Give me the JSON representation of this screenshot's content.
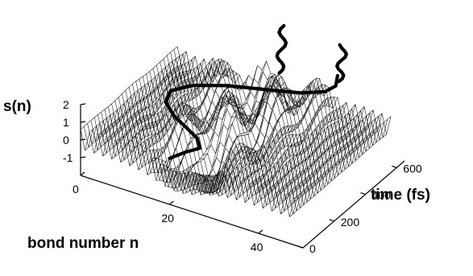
{
  "chart_data": {
    "type": "surface3d",
    "title": "",
    "axes": {
      "x": {
        "label": "bond number n",
        "range": [
          0,
          50
        ],
        "ticks": [
          "0",
          "20",
          "40"
        ],
        "tick_values": [
          0,
          20,
          40
        ]
      },
      "y": {
        "label": "time (fs)",
        "range": [
          0,
          650
        ],
        "ticks": [
          "0",
          "200",
          "400",
          "600"
        ],
        "tick_values": [
          0,
          200,
          400,
          600
        ]
      },
      "z": {
        "label": "s(n)",
        "range": [
          -2,
          2
        ],
        "ticks": [
          "2",
          "1",
          "0",
          "-1"
        ],
        "tick_values": [
          2,
          1,
          0,
          -1
        ]
      }
    },
    "surface": {
      "description_values": "bond-order staggering field s(n,t), flat (~0.7 / -0.7 alternation) near edges, strongly distorted near n ~ 15-30 and t ~ 100-600",
      "grid_n": 48,
      "grid_t": 28
    },
    "trajectory": {
      "label": "",
      "points": [
        [
          20,
          0,
          0.6
        ],
        [
          22,
          40,
          0.8
        ],
        [
          24,
          80,
          0.9
        ],
        [
          22,
          120,
          1.0
        ],
        [
          18,
          160,
          1.0
        ],
        [
          14,
          200,
          1.0
        ],
        [
          10,
          260,
          1.0
        ],
        [
          9,
          320,
          1.1
        ],
        [
          12,
          380,
          1.2
        ],
        [
          18,
          430,
          1.3
        ],
        [
          26,
          470,
          1.4
        ],
        [
          32,
          500,
          1.5
        ],
        [
          36,
          540,
          1.6
        ],
        [
          37,
          580,
          1.7
        ],
        [
          36,
          620,
          1.9
        ]
      ]
    },
    "grid": false,
    "legend": "none"
  }
}
